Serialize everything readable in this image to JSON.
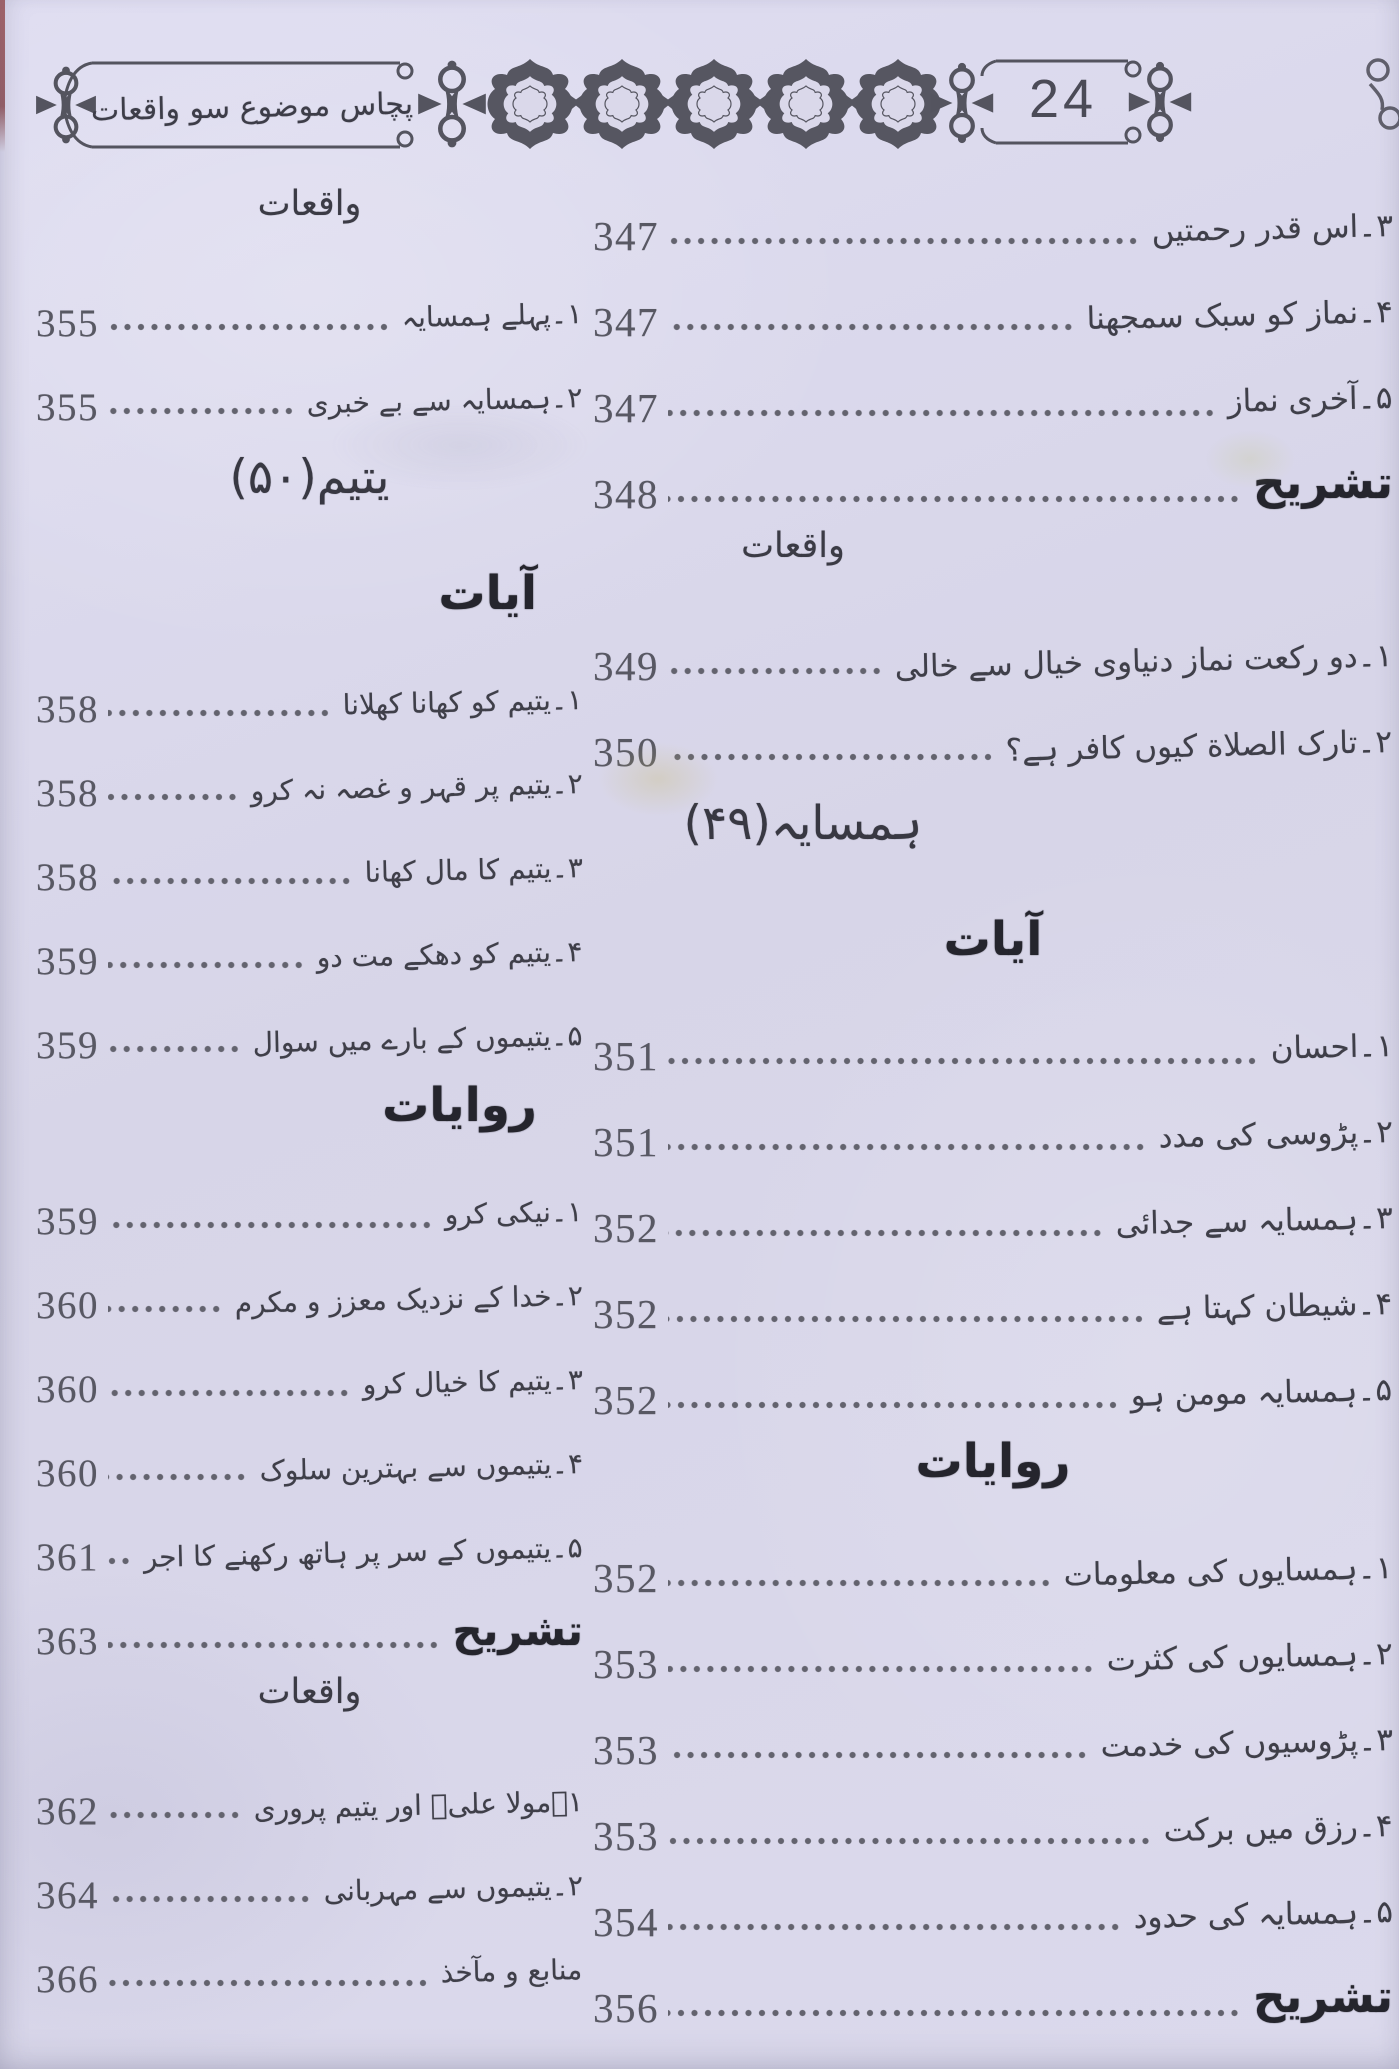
{
  "header": {
    "book_title": "پچاس موضوع سو واقعات",
    "page_number": "24"
  },
  "colors": {
    "paper": "#dad8ea",
    "ink": "#3f3f49",
    "ornament": "#54545f",
    "edge_mark": "#93322e"
  },
  "columns": {
    "right": {
      "items": [
        {
          "type": "entry",
          "title": "۳۔اس قدر رحمتیں",
          "page": "347"
        },
        {
          "type": "entry",
          "title": "۴۔نماز کو سبک سمجھنا",
          "page": "347"
        },
        {
          "type": "entry",
          "title": "۵۔آخری نماز",
          "page": "347"
        },
        {
          "type": "entry_bold",
          "title": "تشریح",
          "page": "348"
        },
        {
          "type": "chapter",
          "title": "واقعات"
        },
        {
          "type": "entry",
          "title": "۱۔دو رکعت نماز دنیاوی خیال سے خالی",
          "page": "349"
        },
        {
          "type": "entry",
          "title": "۲۔تارک الصلاة کیوں کافر ہے؟",
          "page": "350"
        },
        {
          "type": "section",
          "title": "ہمسایہ(۴۹)"
        },
        {
          "type": "group",
          "title": "آیات"
        },
        {
          "type": "entry",
          "title": "۱۔احسان",
          "page": "351"
        },
        {
          "type": "entry",
          "title": "۲۔پڑوسی کی مدد",
          "page": "351"
        },
        {
          "type": "entry",
          "title": "۳۔ہمسایہ سے جدائی",
          "page": "352"
        },
        {
          "type": "entry",
          "title": "۴۔شیطان کہتا ہے",
          "page": "352"
        },
        {
          "type": "entry",
          "title": "۵۔ہمسایہ مومن ہو",
          "page": "352"
        },
        {
          "type": "group",
          "title": "روایات"
        },
        {
          "type": "entry",
          "title": "۱۔ہمسایوں کی معلومات",
          "page": "352"
        },
        {
          "type": "entry",
          "title": "۲۔ہمسایوں کی کثرت",
          "page": "353"
        },
        {
          "type": "entry",
          "title": "۳۔پڑوسیوں کی خدمت",
          "page": "353"
        },
        {
          "type": "entry",
          "title": "۴۔رزق میں برکت",
          "page": "353"
        },
        {
          "type": "entry",
          "title": "۵۔ہمسایہ کی حدود",
          "page": "354"
        },
        {
          "type": "entry_bold",
          "title": "تشریح",
          "page": "356"
        }
      ]
    },
    "left": {
      "items": [
        {
          "type": "chapter",
          "title": "واقعات"
        },
        {
          "type": "entry",
          "title": "۱۔پہلے ہمسایہ",
          "page": "355"
        },
        {
          "type": "entry",
          "title": "۲۔ہمسایہ سے بے خبری",
          "page": "355"
        },
        {
          "type": "section",
          "title": "یتیم(۵۰)"
        },
        {
          "type": "group",
          "title": "آیات"
        },
        {
          "type": "entry",
          "title": "۱۔یتیم کو کھانا کھلانا",
          "page": "358"
        },
        {
          "type": "entry",
          "title": "۲۔یتیم پر قہر و غصہ نہ کرو",
          "page": "358"
        },
        {
          "type": "entry",
          "title": "۳۔یتیم کا مال کھانا",
          "page": "358"
        },
        {
          "type": "entry",
          "title": "۴۔یتیم کو دھکے مت دو",
          "page": "359"
        },
        {
          "type": "entry",
          "title": "۵۔یتیموں کے بارے میں سوال",
          "page": "359"
        },
        {
          "type": "group",
          "title": "روایات"
        },
        {
          "type": "entry",
          "title": "۱۔نیکی کرو",
          "page": "359"
        },
        {
          "type": "entry",
          "title": "۲۔خدا کے نزدیک معزز و مکرم",
          "page": "360"
        },
        {
          "type": "entry",
          "title": "۳۔یتیم کا خیال کرو",
          "page": "360"
        },
        {
          "type": "entry",
          "title": "۴۔یتیموں سے بہترین سلوک",
          "page": "360"
        },
        {
          "type": "entry",
          "title": "۵۔یتیموں کے سر پر ہاتھ رکھنے کا اجر",
          "page": "361"
        },
        {
          "type": "entry_bold",
          "title": "تشریح",
          "page": "363"
        },
        {
          "type": "chapter",
          "title": "واقعات"
        },
        {
          "type": "entry",
          "title": "۱۔مولا علیؑ اور یتیم پروری",
          "page": "362"
        },
        {
          "type": "entry",
          "title": "۲۔یتیموں سے مہربانی",
          "page": "364"
        },
        {
          "type": "entry",
          "title": "منابع و مآخذ",
          "page": "366"
        }
      ]
    }
  }
}
